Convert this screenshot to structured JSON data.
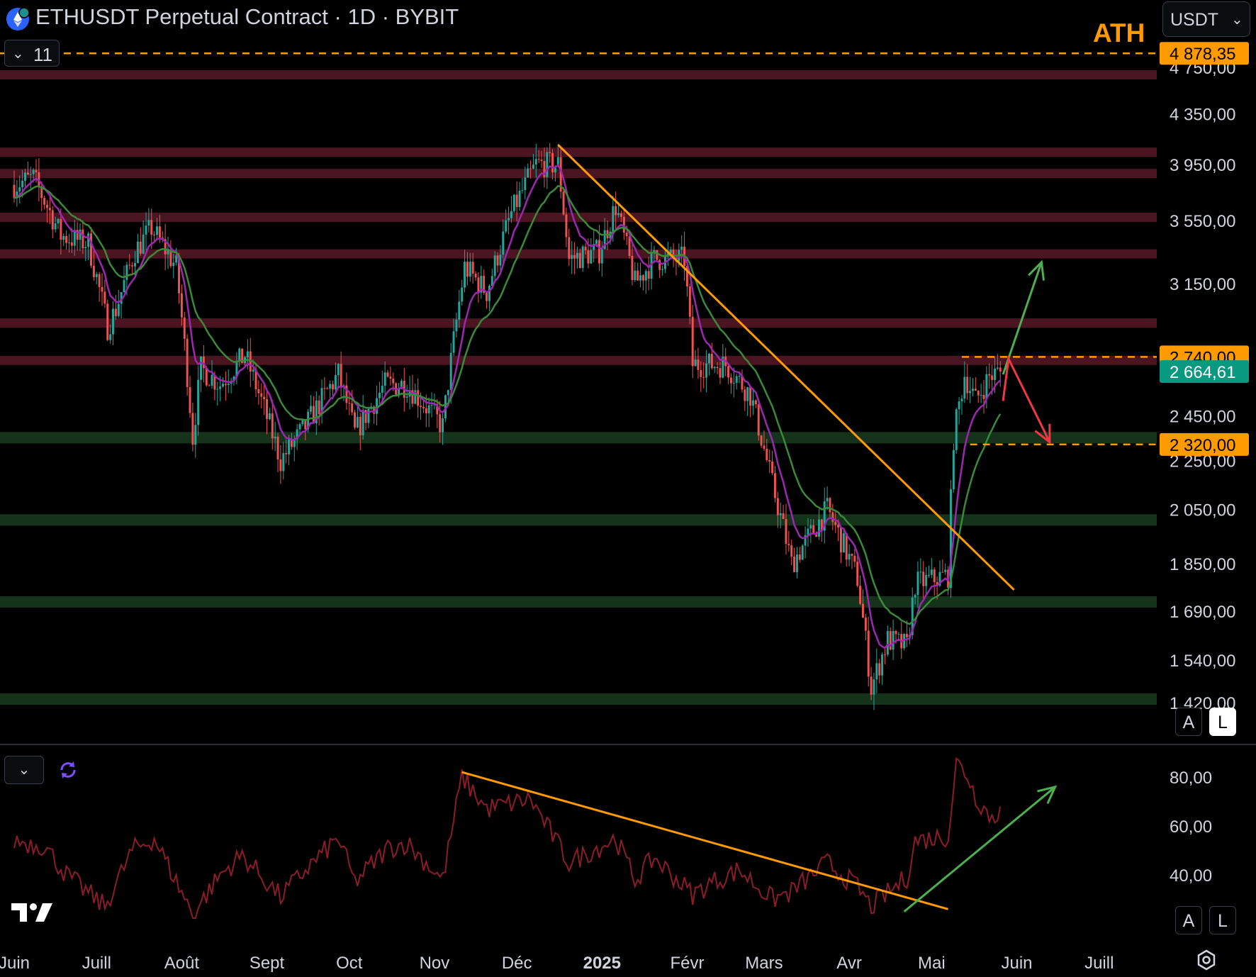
{
  "header": {
    "title": "ETHUSDT Perpetual Contract · 1D · BYBIT",
    "indicator_count": "11",
    "currency": "USDT",
    "ath_label": "ATH"
  },
  "scale_buttons": {
    "auto": "A",
    "log": "L"
  },
  "colors": {
    "background": "#000000",
    "ath_line": "#ff9a00",
    "trendline": "#ff9a00",
    "resistance_zone": "#4a1520",
    "support_zone": "#14331a",
    "bull_candle": "#26a69a",
    "bear_candle": "#ef5350",
    "ma_fast": "#9c27b0",
    "ma_slow": "#3a8a3a",
    "rsi_line": "#8b1c28",
    "green_arrow": "#4caf50",
    "red_arrow": "#f23645",
    "current_price_tag": "#089981"
  },
  "icons": {
    "symbol": "ethereum-logo-icon",
    "indicator_toggle": "chevron-down-icon",
    "currency_dropdown": "chevron-down-icon",
    "sync": "sync-icon",
    "logo": "tradingview-logo-icon",
    "settings": "gear-icon"
  },
  "chart_data": [
    {
      "type": "candlestick",
      "title": "ETHUSDT Perpetual Contract · 1D · BYBIT",
      "y_scale": "log",
      "ylim": [
        1380,
        4900
      ],
      "y_ticks": [
        4750,
        4350,
        3950,
        3550,
        3150,
        2740,
        2450,
        2250,
        2050,
        1850,
        1690,
        1540,
        1420
      ],
      "y_tick_labels": [
        "4 750,00",
        "4 350,00",
        "3 950,00",
        "3 550,00",
        "3 150,00",
        "2 740,00",
        "2 450,00",
        "2 250,00",
        "2 050,00",
        "1 850,00",
        "1 690,00",
        "1 540,00",
        "1 420,00"
      ],
      "x_ticks": [
        "Juin",
        "Juill",
        "Août",
        "Sept",
        "Oct",
        "Nov",
        "Déc",
        "2025",
        "Févr",
        "Mars",
        "Avr",
        "Mai",
        "Juin",
        "Juill"
      ],
      "xlim": [
        "2024-06-01",
        "2025-07-15"
      ],
      "price_tags": [
        {
          "label": "4 878,35",
          "value": 4878.35,
          "kind": "ath"
        },
        {
          "label": "2 740,00",
          "value": 2740,
          "kind": "resistance"
        },
        {
          "label": "2 664,61",
          "value": 2664.61,
          "kind": "last"
        },
        {
          "label": "2 320,00",
          "value": 2320,
          "kind": "support"
        }
      ],
      "horizontal_lines": [
        {
          "value": 4878.35,
          "style": "dashed",
          "color": "ath_line"
        },
        {
          "value": 2740,
          "style": "dashed",
          "color": "ath_line",
          "from": "2025-05-12"
        },
        {
          "value": 2320,
          "style": "dashed",
          "color": "ath_line",
          "from": "2025-05-15"
        }
      ],
      "resistance_zones": [
        4680,
        4040,
        3880,
        3570,
        3330,
        2920,
        2720
      ],
      "support_zones": [
        2350,
        2010,
        1720,
        1430
      ],
      "trendline": [
        {
          "date": "2024-12-16",
          "price": 4100
        },
        {
          "date": "2025-05-31",
          "price": 1760
        }
      ],
      "anchors": [
        {
          "date": "2024-06-01",
          "price": 3800
        },
        {
          "date": "2024-06-08",
          "price": 3850
        },
        {
          "date": "2024-06-18",
          "price": 3450
        },
        {
          "date": "2024-06-28",
          "price": 3400
        },
        {
          "date": "2024-07-05",
          "price": 2900
        },
        {
          "date": "2024-07-08",
          "price": 3000
        },
        {
          "date": "2024-07-15",
          "price": 3350
        },
        {
          "date": "2024-07-21",
          "price": 3500
        },
        {
          "date": "2024-07-30",
          "price": 3250
        },
        {
          "date": "2024-08-05",
          "price": 2350
        },
        {
          "date": "2024-08-08",
          "price": 2680
        },
        {
          "date": "2024-08-15",
          "price": 2600
        },
        {
          "date": "2024-08-24",
          "price": 2750
        },
        {
          "date": "2024-09-06",
          "price": 2250
        },
        {
          "date": "2024-09-15",
          "price": 2400
        },
        {
          "date": "2024-09-27",
          "price": 2650
        },
        {
          "date": "2024-10-03",
          "price": 2370
        },
        {
          "date": "2024-10-14",
          "price": 2600
        },
        {
          "date": "2024-10-22",
          "price": 2600
        },
        {
          "date": "2024-11-04",
          "price": 2400
        },
        {
          "date": "2024-11-12",
          "price": 3250
        },
        {
          "date": "2024-11-20",
          "price": 3100
        },
        {
          "date": "2024-11-29",
          "price": 3600
        },
        {
          "date": "2024-12-08",
          "price": 3950
        },
        {
          "date": "2024-12-16",
          "price": 3950
        },
        {
          "date": "2024-12-20",
          "price": 3300
        },
        {
          "date": "2024-12-31",
          "price": 3350
        },
        {
          "date": "2025-01-06",
          "price": 3650
        },
        {
          "date": "2025-01-13",
          "price": 3150
        },
        {
          "date": "2025-01-20",
          "price": 3300
        },
        {
          "date": "2025-01-31",
          "price": 3300
        },
        {
          "date": "2025-02-03",
          "price": 2700
        },
        {
          "date": "2025-02-15",
          "price": 2700
        },
        {
          "date": "2025-02-24",
          "price": 2550
        },
        {
          "date": "2025-03-04",
          "price": 2150
        },
        {
          "date": "2025-03-11",
          "price": 1850
        },
        {
          "date": "2025-03-24",
          "price": 2050
        },
        {
          "date": "2025-04-04",
          "price": 1800
        },
        {
          "date": "2025-04-09",
          "price": 1460
        },
        {
          "date": "2025-04-15",
          "price": 1600
        },
        {
          "date": "2025-04-22",
          "price": 1580
        },
        {
          "date": "2025-04-25",
          "price": 1780
        },
        {
          "date": "2025-05-07",
          "price": 1810
        },
        {
          "date": "2025-05-09",
          "price": 2350
        },
        {
          "date": "2025-05-13",
          "price": 2650
        },
        {
          "date": "2025-05-17",
          "price": 2520
        },
        {
          "date": "2025-05-22",
          "price": 2640
        },
        {
          "date": "2025-05-26",
          "price": 2664.61
        }
      ],
      "arrows": [
        {
          "color": "green_arrow",
          "from": {
            "date": "2025-05-27",
            "price": 2650
          },
          "to": {
            "date": "2025-06-10",
            "price": 3280
          }
        },
        {
          "color": "red_arrow",
          "from": {
            "date": "2025-05-27",
            "price": 2520
          },
          "via": {
            "date": "2025-05-29",
            "price": 2730
          },
          "to": {
            "date": "2025-06-13",
            "price": 2330
          }
        }
      ]
    },
    {
      "type": "line",
      "ylim": [
        22,
        92
      ],
      "y_ticks": [
        80,
        60,
        40
      ],
      "y_tick_labels": [
        "80,00",
        "60,00",
        "40,00"
      ],
      "anchors": [
        {
          "date": "2024-06-01",
          "value": 54
        },
        {
          "date": "2024-06-12",
          "value": 52
        },
        {
          "date": "2024-06-20",
          "value": 40
        },
        {
          "date": "2024-07-04",
          "value": 27
        },
        {
          "date": "2024-07-14",
          "value": 50
        },
        {
          "date": "2024-07-22",
          "value": 55
        },
        {
          "date": "2024-08-05",
          "value": 24
        },
        {
          "date": "2024-08-15",
          "value": 40
        },
        {
          "date": "2024-08-23",
          "value": 48
        },
        {
          "date": "2024-09-06",
          "value": 31
        },
        {
          "date": "2024-09-15",
          "value": 42
        },
        {
          "date": "2024-09-27",
          "value": 55
        },
        {
          "date": "2024-10-03",
          "value": 37
        },
        {
          "date": "2024-10-15",
          "value": 51
        },
        {
          "date": "2024-10-22",
          "value": 53
        },
        {
          "date": "2024-11-04",
          "value": 38
        },
        {
          "date": "2024-11-11",
          "value": 80
        },
        {
          "date": "2024-11-20",
          "value": 67
        },
        {
          "date": "2024-12-06",
          "value": 71
        },
        {
          "date": "2024-12-20",
          "value": 45
        },
        {
          "date": "2025-01-06",
          "value": 55
        },
        {
          "date": "2025-01-13",
          "value": 38
        },
        {
          "date": "2025-01-20",
          "value": 47
        },
        {
          "date": "2025-02-03",
          "value": 32
        },
        {
          "date": "2025-02-10",
          "value": 37
        },
        {
          "date": "2025-02-20",
          "value": 42
        },
        {
          "date": "2025-03-04",
          "value": 30
        },
        {
          "date": "2025-03-11",
          "value": 33
        },
        {
          "date": "2025-03-24",
          "value": 45
        },
        {
          "date": "2025-04-04",
          "value": 35
        },
        {
          "date": "2025-04-09",
          "value": 27
        },
        {
          "date": "2025-04-22",
          "value": 39
        },
        {
          "date": "2025-04-25",
          "value": 54
        },
        {
          "date": "2025-05-07",
          "value": 56
        },
        {
          "date": "2025-05-10",
          "value": 86
        },
        {
          "date": "2025-05-14",
          "value": 81
        },
        {
          "date": "2025-05-17",
          "value": 72
        },
        {
          "date": "2025-05-21",
          "value": 66
        },
        {
          "date": "2025-05-24",
          "value": 62
        },
        {
          "date": "2025-05-26",
          "value": 68
        }
      ],
      "trendline": [
        {
          "date": "2024-11-11",
          "value": 82
        },
        {
          "date": "2025-05-07",
          "value": 26
        }
      ],
      "arrow": {
        "color": "green_arrow",
        "from": {
          "date": "2025-04-21",
          "value": 25
        },
        "to": {
          "date": "2025-06-15",
          "value": 76
        }
      }
    }
  ]
}
